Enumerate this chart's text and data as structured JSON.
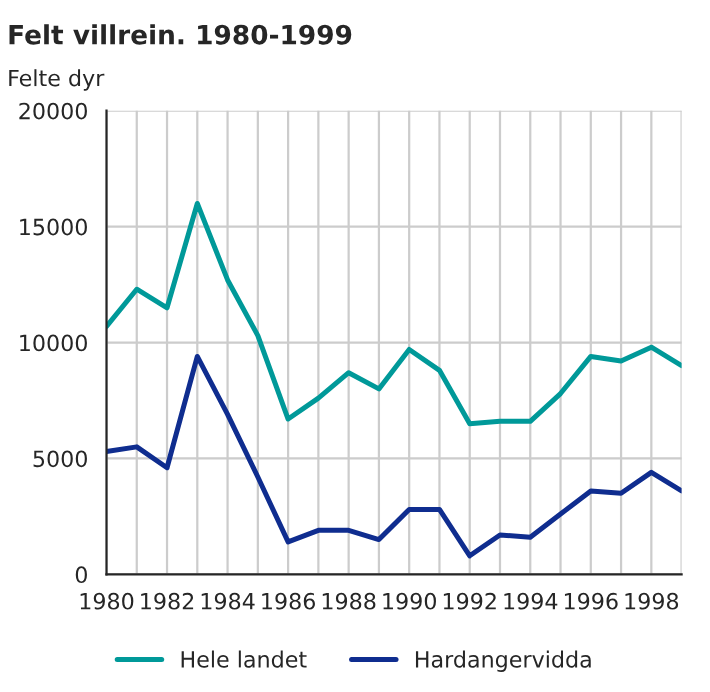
{
  "chart_data": {
    "type": "line",
    "title": "Felt villrein. 1980-1999",
    "ylabel": "Felte dyr",
    "x": [
      1980,
      1981,
      1982,
      1983,
      1984,
      1985,
      1986,
      1987,
      1988,
      1989,
      1990,
      1991,
      1992,
      1993,
      1994,
      1995,
      1996,
      1997,
      1998,
      1999
    ],
    "series": [
      {
        "name": "Hele landet",
        "color": "#009999",
        "values": [
          10700,
          12300,
          11500,
          16000,
          12700,
          10300,
          6700,
          7600,
          8700,
          8000,
          9700,
          8800,
          6500,
          6600,
          6600,
          7800,
          9400,
          9200,
          9800,
          9000
        ]
      },
      {
        "name": "Hardangervidda",
        "color": "#0f2d8f",
        "values": [
          5300,
          5500,
          4600,
          9400,
          6900,
          4200,
          1400,
          1900,
          1900,
          1500,
          2800,
          2800,
          800,
          1700,
          1600,
          2600,
          3600,
          3500,
          4400,
          3600
        ]
      }
    ],
    "xlim": [
      1980,
      1999
    ],
    "xticks": [
      1980,
      {
        "value": 1981,
        "label": null
      },
      1982,
      {
        "value": 1983,
        "label": null
      },
      1984,
      {
        "value": 1985,
        "label": null
      },
      1986,
      {
        "value": 1987,
        "label": null
      },
      1988,
      {
        "value": 1989,
        "label": null
      },
      1990,
      {
        "value": 1991,
        "label": null
      },
      1992,
      {
        "value": 1993,
        "label": null
      },
      1994,
      {
        "value": 1995,
        "label": null
      },
      1996,
      {
        "value": 1997,
        "label": null
      },
      1998,
      {
        "value": 1999,
        "label": null
      }
    ],
    "ylim": [
      0,
      20000
    ],
    "yticks": [
      0,
      5000,
      10000,
      15000,
      20000
    ],
    "grid": true,
    "legend": "bottom",
    "marker": "none",
    "line_style": "solid"
  }
}
